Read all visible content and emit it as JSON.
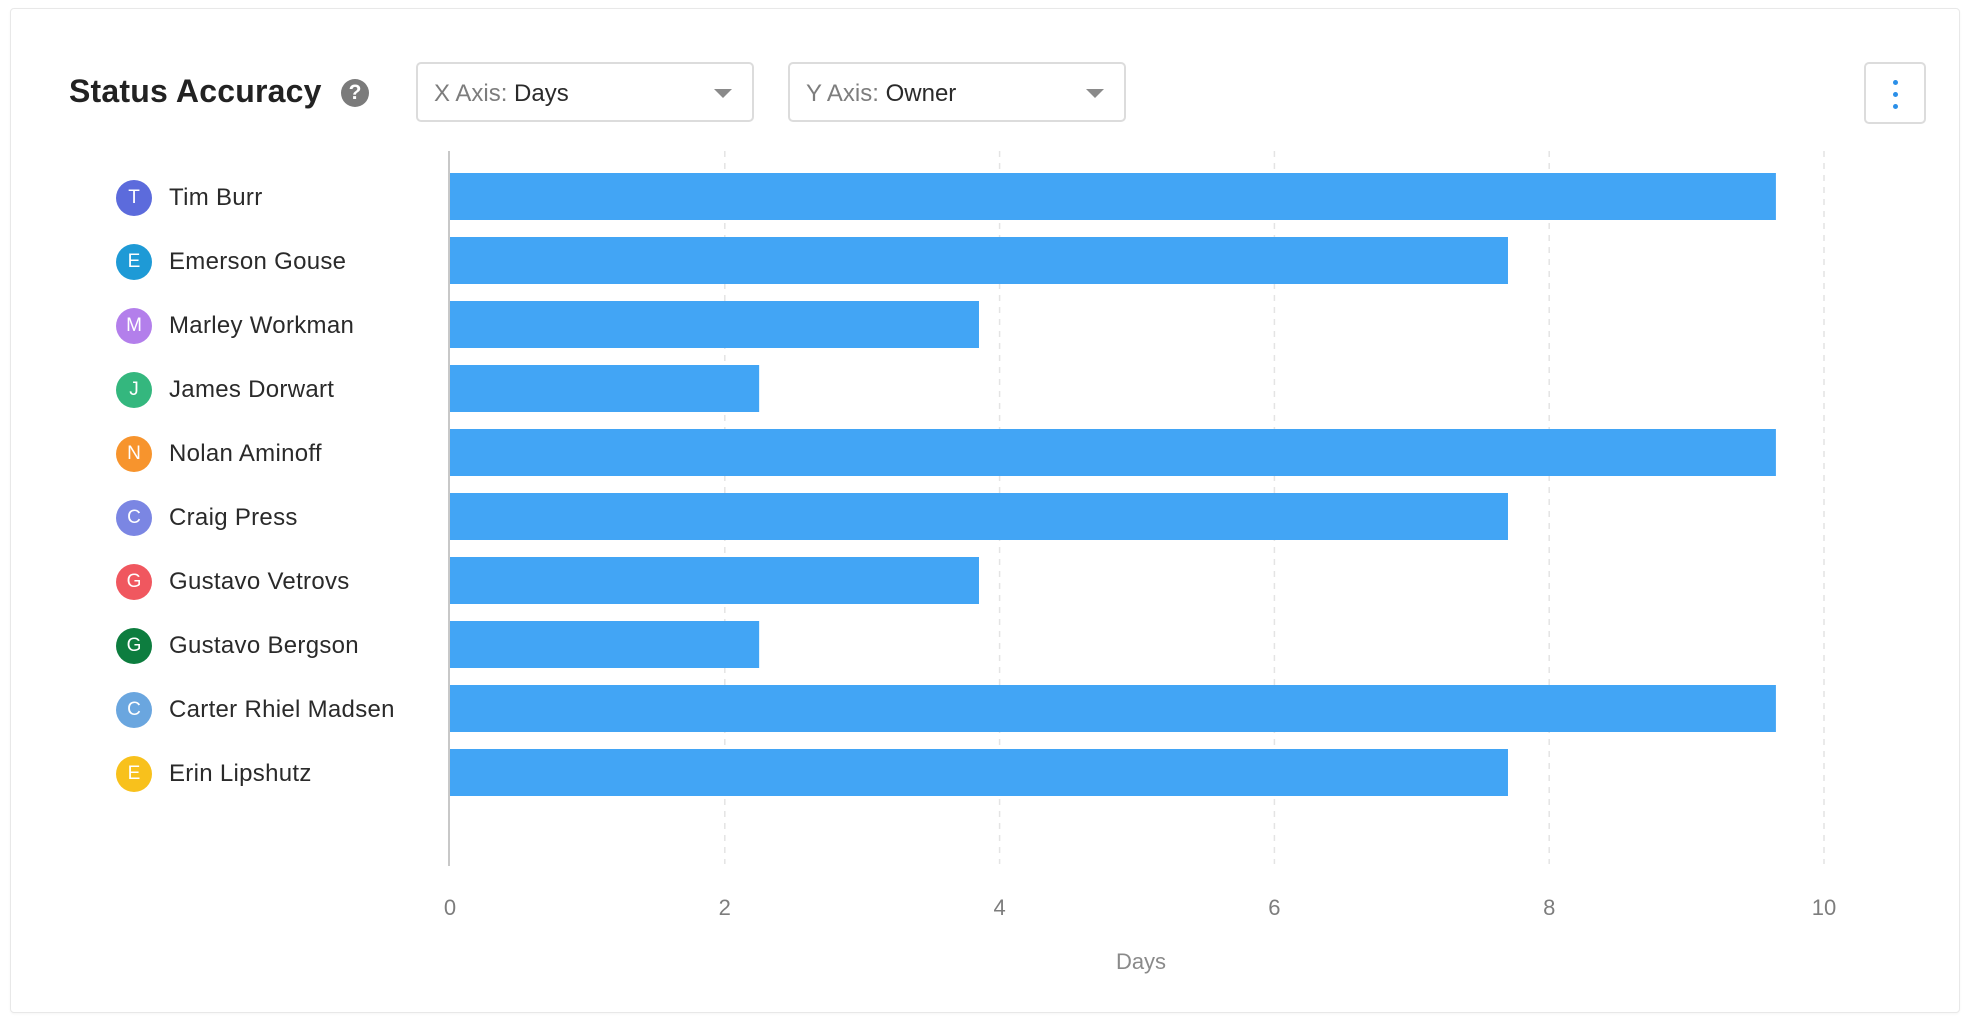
{
  "header": {
    "title": "Status Accuracy",
    "help_icon": "question-circle-icon",
    "help_glyph": "?",
    "x_axis_select": {
      "prefix": "X Axis:",
      "value": "Days"
    },
    "y_axis_select": {
      "prefix": "Y Axis:",
      "value": "Owner"
    },
    "menu_icon": "vertical-dots-icon"
  },
  "colors": {
    "bar": "#42a5f5",
    "grid": "#e4e4e4",
    "axis": "#c8c8c8",
    "menu_accent": "#2b8fe8"
  },
  "chart_data": {
    "type": "bar",
    "orientation": "horizontal",
    "categories": [
      "Tim Burr",
      "Emerson Gouse",
      "Marley Workman",
      "James Dorwart",
      "Nolan Aminoff",
      "Craig Press",
      "Gustavo Vetrovs",
      "Gustavo Bergson",
      "Carter Rhiel Madsen",
      "Erin Lipshutz"
    ],
    "values": [
      9.65,
      7.7,
      3.85,
      2.25,
      9.65,
      7.7,
      3.85,
      2.25,
      9.65,
      7.7
    ],
    "avatars": [
      {
        "initial": "T",
        "color": "#5c6bdc"
      },
      {
        "initial": "E",
        "color": "#1e9ad6"
      },
      {
        "initial": "M",
        "color": "#b37feb"
      },
      {
        "initial": "J",
        "color": "#34b77e"
      },
      {
        "initial": "N",
        "color": "#f7942d"
      },
      {
        "initial": "C",
        "color": "#7b86e3"
      },
      {
        "initial": "G",
        "color": "#f0575f"
      },
      {
        "initial": "G",
        "color": "#0d7d3f"
      },
      {
        "initial": "C",
        "color": "#6aa6df"
      },
      {
        "initial": "E",
        "color": "#f8c11c"
      }
    ],
    "xlabel": "Days",
    "xlim": [
      0,
      10
    ],
    "xticks": [
      0,
      2,
      4,
      6,
      8,
      10
    ],
    "grid": "vertical dashed"
  }
}
